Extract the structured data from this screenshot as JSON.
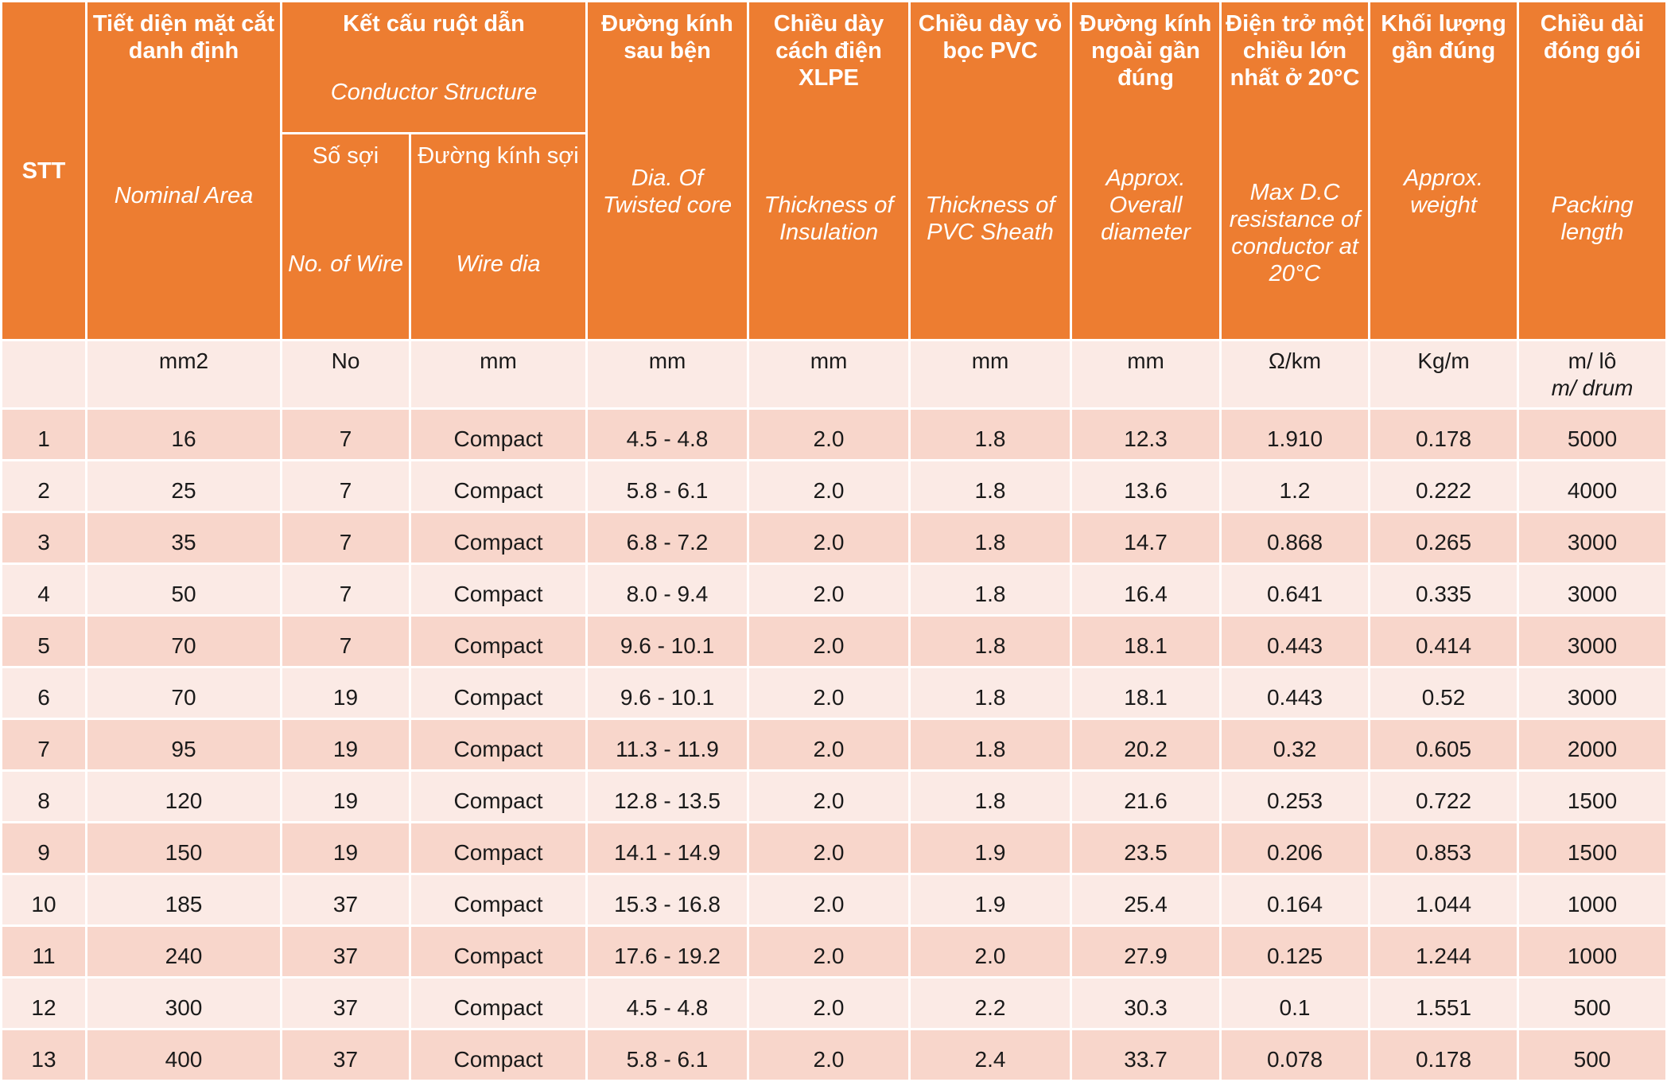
{
  "headers": {
    "stt": "STT",
    "area": {
      "vi": "Tiết diện mặt cắt danh định",
      "en": "Nominal Area"
    },
    "structure": {
      "vi": "Kết cấu ruột dẫn",
      "en": "Conductor Structure"
    },
    "wires": {
      "vi": "Số sợi",
      "en": "No. of Wire"
    },
    "wire_dia": {
      "vi": "Đường kính sợi",
      "en": "Wire dia"
    },
    "twisted": {
      "vi": "Đường kính sau bện",
      "en": "Dia. Of Twisted core"
    },
    "insulation": {
      "vi": "Chiều dày cách điện XLPE",
      "en": "Thickness of Insulation"
    },
    "sheath": {
      "vi": "Chiều dày vỏ bọc PVC",
      "en": "Thickness of PVC Sheath"
    },
    "overall": {
      "vi": "Đường kính ngoài gần đúng",
      "en": "Approx. Overall diameter"
    },
    "resistance": {
      "vi": "Điện trở một chiều lớn nhất ở 20°C",
      "en": "Max D.C resistance of conductor at 20°C"
    },
    "weight": {
      "vi": "Khối lượng gần đúng",
      "en": "Approx. weight"
    },
    "packing": {
      "vi": "Chiều dài đóng gói",
      "en": "Packing length"
    }
  },
  "units": {
    "stt": "",
    "area": "mm2",
    "wires": "No",
    "wire_dia": "mm",
    "twisted": "mm",
    "insulation": "mm",
    "sheath": "mm",
    "overall": "mm",
    "resistance": "Ω/km",
    "weight": "Kg/m",
    "packing_vi": "m/ lô",
    "packing_en": "m/ drum"
  },
  "rows": [
    [
      "1",
      "16",
      "7",
      "Compact",
      "4.5 - 4.8",
      "2.0",
      "1.8",
      "12.3",
      "1.910",
      "0.178",
      "5000"
    ],
    [
      "2",
      "25",
      "7",
      "Compact",
      "5.8 - 6.1",
      "2.0",
      "1.8",
      "13.6",
      "1.2",
      "0.222",
      "4000"
    ],
    [
      "3",
      "35",
      "7",
      "Compact",
      "6.8 - 7.2",
      "2.0",
      "1.8",
      "14.7",
      "0.868",
      "0.265",
      "3000"
    ],
    [
      "4",
      "50",
      "7",
      "Compact",
      "8.0 - 9.4",
      "2.0",
      "1.8",
      "16.4",
      "0.641",
      "0.335",
      "3000"
    ],
    [
      "5",
      "70",
      "7",
      "Compact",
      "9.6 - 10.1",
      "2.0",
      "1.8",
      "18.1",
      "0.443",
      "0.414",
      "3000"
    ],
    [
      "6",
      "70",
      "19",
      "Compact",
      "9.6 - 10.1",
      "2.0",
      "1.8",
      "18.1",
      "0.443",
      "0.52",
      "3000"
    ],
    [
      "7",
      "95",
      "19",
      "Compact",
      "11.3 - 11.9",
      "2.0",
      "1.8",
      "20.2",
      "0.32",
      "0.605",
      "2000"
    ],
    [
      "8",
      "120",
      "19",
      "Compact",
      "12.8 - 13.5",
      "2.0",
      "1.8",
      "21.6",
      "0.253",
      "0.722",
      "1500"
    ],
    [
      "9",
      "150",
      "19",
      "Compact",
      "14.1 - 14.9",
      "2.0",
      "1.9",
      "23.5",
      "0.206",
      "0.853",
      "1500"
    ],
    [
      "10",
      "185",
      "37",
      "Compact",
      "15.3 - 16.8",
      "2.0",
      "1.9",
      "25.4",
      "0.164",
      "1.044",
      "1000"
    ],
    [
      "11",
      "240",
      "37",
      "Compact",
      "17.6 - 19.2",
      "2.0",
      "2.0",
      "27.9",
      "0.125",
      "1.244",
      "1000"
    ],
    [
      "12",
      "300",
      "37",
      "Compact",
      "4.5 - 4.8",
      "2.0",
      "2.2",
      "30.3",
      "0.1",
      "1.551",
      "500"
    ],
    [
      "13",
      "400",
      "37",
      "Compact",
      "5.8 - 6.1",
      "2.0",
      "2.4",
      "33.7",
      "0.078",
      "0.178",
      "500"
    ]
  ],
  "colors": {
    "header": "#ed7d31",
    "row_odd": "#f8d6cb",
    "row_even": "#fbeae5"
  }
}
